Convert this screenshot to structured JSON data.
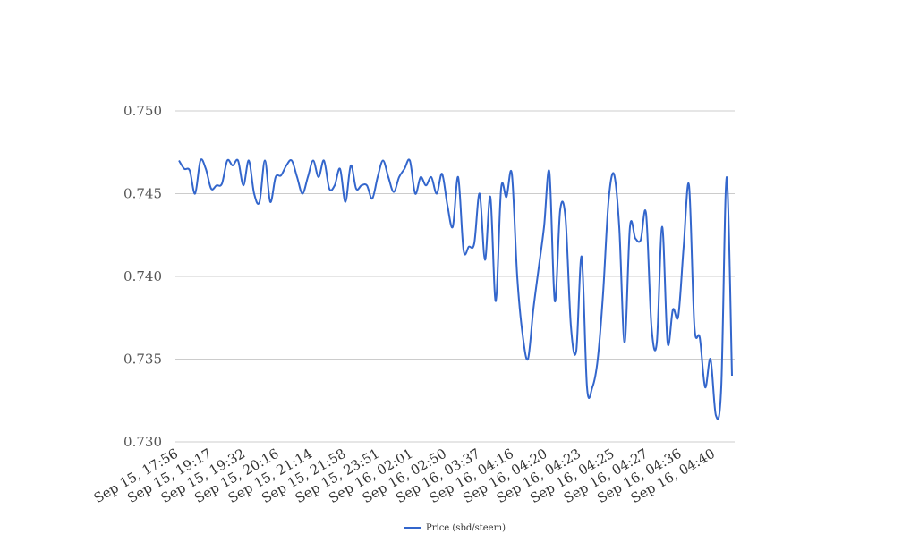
{
  "chart_data": {
    "type": "line",
    "title": "",
    "xlabel": "",
    "ylabel": "",
    "ylim": [
      0.73,
      0.75
    ],
    "yticks": [
      "0.750",
      "0.745",
      "0.740",
      "0.735",
      "0.730"
    ],
    "ytick_values": [
      0.75,
      0.745,
      0.74,
      0.735,
      0.73
    ],
    "xtick_labels": [
      "Sep 15, 17:56",
      "Sep 15, 19:17",
      "Sep 15, 19:32",
      "Sep 15, 20:16",
      "Sep 15, 21:14",
      "Sep 15, 21:58",
      "Sep 15, 23:51",
      "Sep 16, 02:01",
      "Sep 16, 02:50",
      "Sep 16, 03:37",
      "Sep 16, 04:16",
      "Sep 16, 04:20",
      "Sep 16, 04:23",
      "Sep 16, 04:25",
      "Sep 16, 04:27",
      "Sep 16, 04:36",
      "Sep 16, 04:40"
    ],
    "grid": true,
    "legend_position": "bottom",
    "line_color": "#3366cc",
    "series": [
      {
        "name": "Price (sbd/steem)",
        "values": [
          0.747,
          0.7465,
          0.7464,
          0.745,
          0.747,
          0.7465,
          0.7453,
          0.7455,
          0.7456,
          0.747,
          0.7467,
          0.747,
          0.7455,
          0.747,
          0.745,
          0.7445,
          0.747,
          0.7445,
          0.746,
          0.7461,
          0.7467,
          0.747,
          0.746,
          0.745,
          0.746,
          0.747,
          0.746,
          0.747,
          0.7453,
          0.7455,
          0.7465,
          0.7445,
          0.7467,
          0.7453,
          0.7455,
          0.7455,
          0.7447,
          0.746,
          0.747,
          0.746,
          0.7451,
          0.746,
          0.7465,
          0.747,
          0.745,
          0.746,
          0.7455,
          0.746,
          0.745,
          0.7462,
          0.7443,
          0.743,
          0.746,
          0.7416,
          0.7418,
          0.742,
          0.745,
          0.741,
          0.7448,
          0.7385,
          0.7453,
          0.7448,
          0.7462,
          0.74,
          0.7365,
          0.735,
          0.738,
          0.7405,
          0.743,
          0.7463,
          0.7385,
          0.744,
          0.7435,
          0.737,
          0.7355,
          0.7412,
          0.7333,
          0.7333,
          0.735,
          0.739,
          0.7445,
          0.7462,
          0.743,
          0.736,
          0.743,
          0.7423,
          0.7422,
          0.7438,
          0.737,
          0.736,
          0.743,
          0.736,
          0.738,
          0.7376,
          0.7418,
          0.7455,
          0.737,
          0.7363,
          0.7333,
          0.735,
          0.7316,
          0.7333,
          0.746,
          0.734
        ]
      }
    ]
  }
}
